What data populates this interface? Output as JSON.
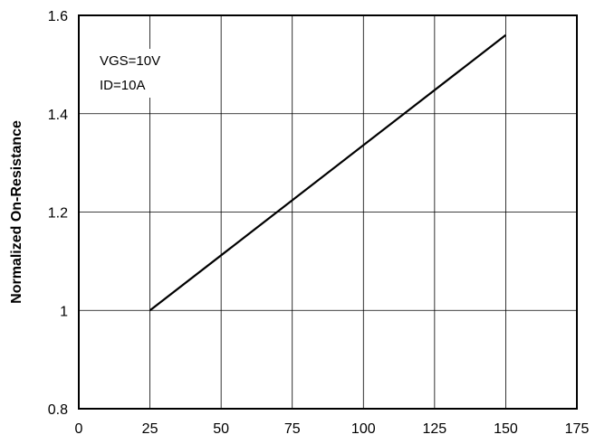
{
  "chart_data": {
    "type": "line",
    "title": "",
    "xlabel": "",
    "ylabel": "Normalized On-Resistance",
    "xlim": [
      0,
      175
    ],
    "ylim": [
      0.8,
      1.6
    ],
    "xticks": [
      0,
      25,
      50,
      75,
      100,
      125,
      150,
      175
    ],
    "yticks": [
      0.8,
      1.0,
      1.2,
      1.4,
      1.6
    ],
    "xtick_labels": [
      "0",
      "25",
      "50",
      "75",
      "100",
      "125",
      "150",
      "175"
    ],
    "ytick_labels": [
      "0.8",
      "1",
      "1.2",
      "1.4",
      "1.6"
    ],
    "grid": true,
    "legend": "none",
    "annotations": [
      "VGS=10V",
      "ID=10A"
    ],
    "series": [
      {
        "x": [
          25,
          150
        ],
        "y": [
          1.0,
          1.56
        ]
      }
    ]
  }
}
